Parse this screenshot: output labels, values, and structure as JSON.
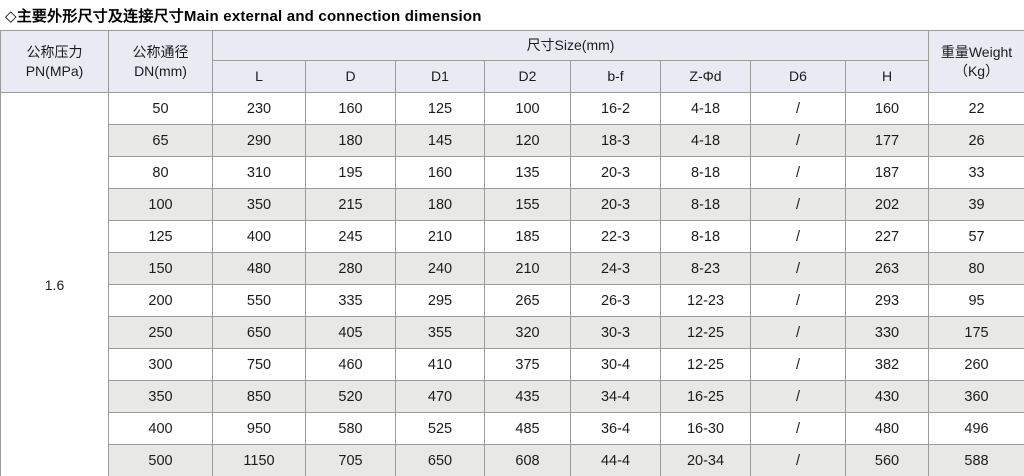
{
  "title": "◇主要外形尺寸及连接尺寸Main external and connection dimension",
  "colors": {
    "header_bg": "#eaeaf2",
    "stripe_bg": "#e8e8e7",
    "border": "#9b9b9b",
    "title_text": "#000000",
    "cell_text": "#1c1c1c"
  },
  "table": {
    "pn_header_line1": "公称压力",
    "pn_header_line2": "PN(MPa)",
    "dn_header_line1": "公称通径",
    "dn_header_line2": "DN(mm)",
    "size_group_header": "尺寸Size(mm)",
    "size_columns": [
      "L",
      "D",
      "D1",
      "D2",
      "b-f",
      "Z-Φd",
      "D6",
      "H"
    ],
    "weight_header_line1": "重量Weight",
    "weight_header_line2": "（Kg）",
    "pn_value": "1.6",
    "rows": [
      [
        "50",
        "230",
        "160",
        "125",
        "100",
        "16-2",
        "4-18",
        "/",
        "160",
        "22"
      ],
      [
        "65",
        "290",
        "180",
        "145",
        "120",
        "18-3",
        "4-18",
        "/",
        "177",
        "26"
      ],
      [
        "80",
        "310",
        "195",
        "160",
        "135",
        "20-3",
        "8-18",
        "/",
        "187",
        "33"
      ],
      [
        "100",
        "350",
        "215",
        "180",
        "155",
        "20-3",
        "8-18",
        "/",
        "202",
        "39"
      ],
      [
        "125",
        "400",
        "245",
        "210",
        "185",
        "22-3",
        "8-18",
        "/",
        "227",
        "57"
      ],
      [
        "150",
        "480",
        "280",
        "240",
        "210",
        "24-3",
        "8-23",
        "/",
        "263",
        "80"
      ],
      [
        "200",
        "550",
        "335",
        "295",
        "265",
        "26-3",
        "12-23",
        "/",
        "293",
        "95"
      ],
      [
        "250",
        "650",
        "405",
        "355",
        "320",
        "30-3",
        "12-25",
        "/",
        "330",
        "175"
      ],
      [
        "300",
        "750",
        "460",
        "410",
        "375",
        "30-4",
        "12-25",
        "/",
        "382",
        "260"
      ],
      [
        "350",
        "850",
        "520",
        "470",
        "435",
        "34-4",
        "16-25",
        "/",
        "430",
        "360"
      ],
      [
        "400",
        "950",
        "580",
        "525",
        "485",
        "36-4",
        "16-30",
        "/",
        "480",
        "496"
      ],
      [
        "500",
        "1150",
        "705",
        "650",
        "608",
        "44-4",
        "20-34",
        "/",
        "560",
        "588"
      ]
    ]
  }
}
